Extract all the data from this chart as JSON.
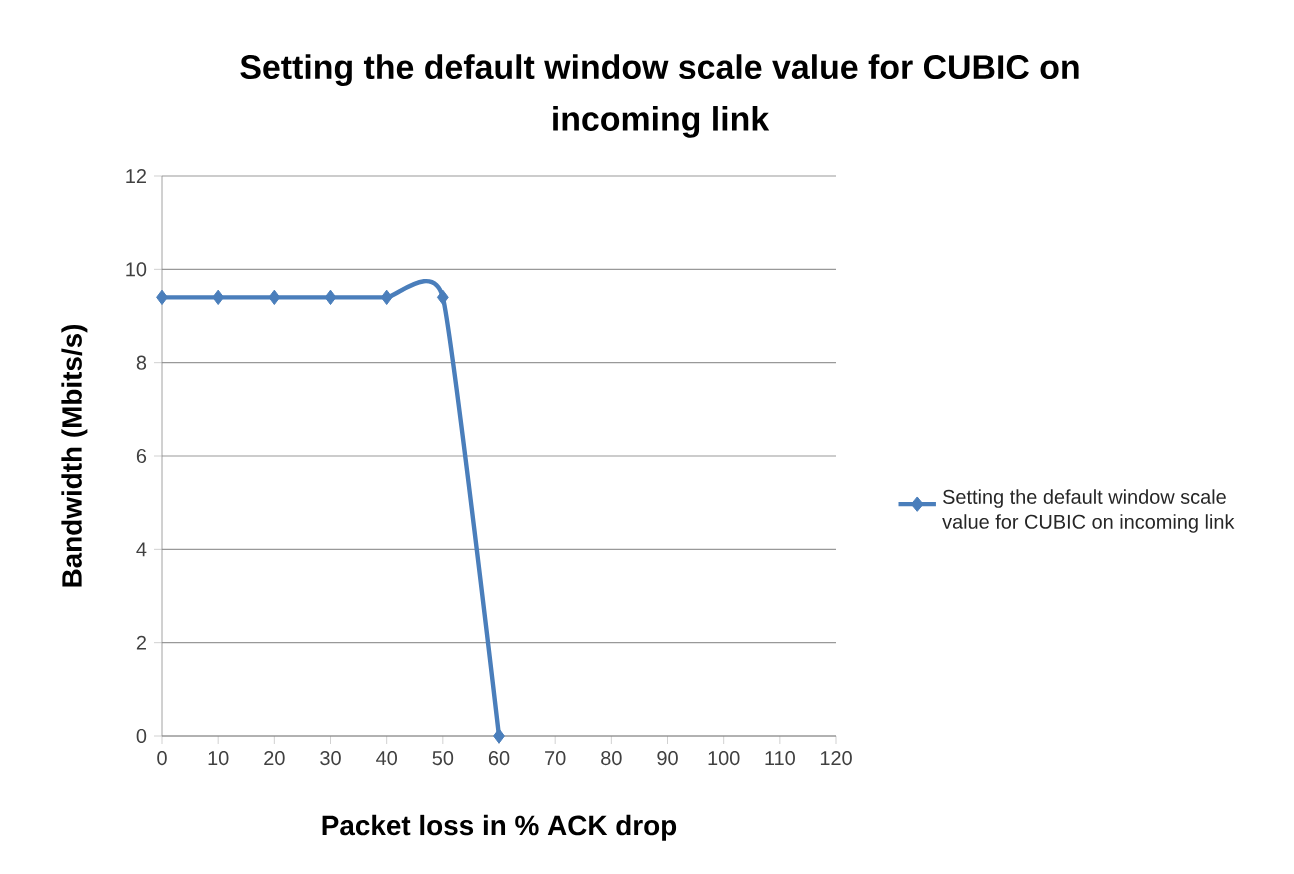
{
  "chart_data": {
    "type": "line",
    "title": "Setting the default window scale value for CUBIC on incoming link",
    "xlabel": "Packet loss in % ACK drop",
    "ylabel": "Bandwidth (Mbits/s)",
    "x": [
      0,
      10,
      20,
      30,
      40,
      50,
      60
    ],
    "series": [
      {
        "name": "Setting the default window scale value for CUBIC on incoming link",
        "color": "#4a7ebb",
        "values": [
          9.4,
          9.4,
          9.4,
          9.4,
          9.4,
          9.4,
          0
        ]
      }
    ],
    "xlim": [
      0,
      120
    ],
    "xticks": [
      0,
      10,
      20,
      30,
      40,
      50,
      60,
      70,
      80,
      90,
      100,
      110,
      120
    ],
    "ylim": [
      0,
      12
    ],
    "yticks": [
      0,
      2,
      4,
      6,
      8,
      10,
      12
    ],
    "grid": "y",
    "legend": "right",
    "marker": "diamond",
    "line_style": "solid"
  }
}
